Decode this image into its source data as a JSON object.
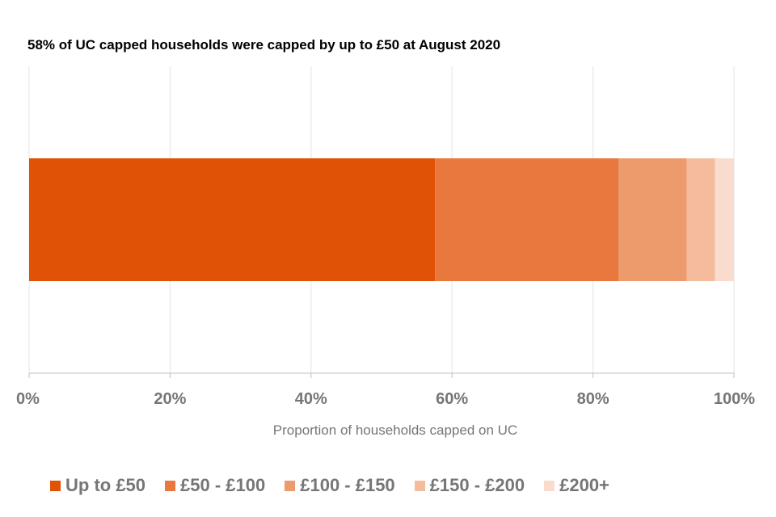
{
  "chart_data": {
    "type": "bar",
    "orientation": "horizontal",
    "stacked": true,
    "title": "58% of UC capped households were capped by up to £50  at August 2020",
    "xlabel": "Proportion of households capped on UC",
    "ylabel": "",
    "xlim": [
      0,
      100
    ],
    "x_tick_labels": [
      "0%",
      "20%",
      "40%",
      "60%",
      "80%",
      "100%"
    ],
    "grid": true,
    "legend_position": "bottom",
    "series": [
      {
        "name": "Up to £50",
        "value": 57.6,
        "color": "#E05206"
      },
      {
        "name": "£50 - £100",
        "value": 26.0,
        "color": "#E8783E"
      },
      {
        "name": "£100 - £150",
        "value": 9.7,
        "color": "#ED9A6D"
      },
      {
        "name": "£150 - £200",
        "value": 4.0,
        "color": "#F4BC9D"
      },
      {
        "name": "£200+",
        "value": 2.7,
        "color": "#F9DCCE"
      }
    ]
  }
}
